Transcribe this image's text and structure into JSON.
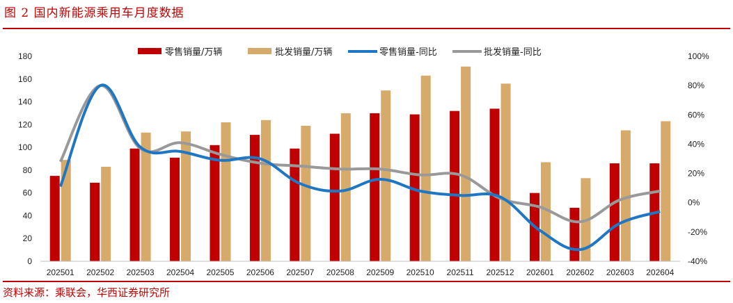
{
  "header": {
    "title": "图 2  国内新能源乘用车月度数据"
  },
  "footer": {
    "source": "资料来源：乘联会，华西证券研究所"
  },
  "colors": {
    "retail_bar": "#c00000",
    "wholesale_bar": "#d6aa6a",
    "retail_line": "#1f77c4",
    "wholesale_line": "#999999",
    "rule": "#c00000"
  },
  "chart_data": {
    "type": "bar",
    "categories": [
      "202501",
      "202502",
      "202503",
      "202504",
      "202505",
      "202506",
      "202507",
      "202508",
      "202509",
      "202510",
      "202511",
      "202512",
      "202601",
      "202602",
      "202603",
      "202604"
    ],
    "series": [
      {
        "name": "零售销量/万辆",
        "kind": "bar",
        "axis": "left",
        "values": [
          75,
          69,
          99,
          91,
          102,
          111,
          99,
          112,
          130,
          129,
          132,
          134,
          60,
          47,
          86,
          86
        ]
      },
      {
        "name": "批发销量/万辆",
        "kind": "bar",
        "axis": "left",
        "values": [
          89,
          83,
          113,
          114,
          122,
          124,
          119,
          130,
          150,
          163,
          171,
          156,
          87,
          73,
          115,
          123
        ]
      },
      {
        "name": "零售销量-同比",
        "kind": "line",
        "axis": "right",
        "values": [
          11,
          80,
          38,
          35,
          29,
          30,
          13,
          8,
          16,
          8,
          5,
          4,
          -19,
          -32,
          -14,
          -6
        ]
      },
      {
        "name": "批发销量-同比",
        "kind": "line",
        "axis": "right",
        "values": [
          28,
          80,
          37,
          41,
          33,
          27,
          25,
          23,
          23,
          19,
          19,
          3,
          -3,
          -13,
          2,
          8
        ]
      }
    ],
    "y_left": {
      "min": 0,
      "max": 180,
      "ticks": [
        "0",
        "20",
        "40",
        "60",
        "80",
        "100",
        "120",
        "140",
        "160",
        "180"
      ]
    },
    "y_right": {
      "min": -40,
      "max": 100,
      "ticks": [
        "-40%",
        "-20%",
        "0%",
        "20%",
        "40%",
        "60%",
        "80%",
        "100%"
      ]
    },
    "grid": false,
    "legend": "top-center"
  }
}
